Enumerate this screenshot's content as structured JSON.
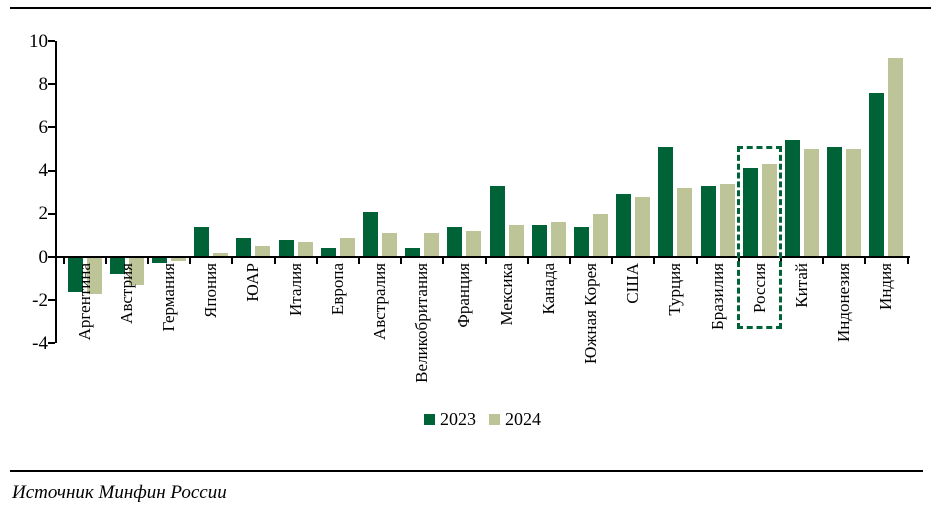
{
  "source": {
    "text": "Источник Минфин России"
  },
  "legend": {
    "items": [
      "2023",
      "2024"
    ]
  },
  "chart_data": {
    "type": "bar",
    "title": "",
    "xlabel": "",
    "ylabel": "",
    "ylim": [
      -4,
      10
    ],
    "yticks": [
      10,
      8,
      6,
      4,
      2,
      0,
      -2,
      -4
    ],
    "grid": false,
    "legend_position": "bottom-center",
    "highlight": {
      "category": "Россия",
      "style": "dashed-outline",
      "color": "#006337"
    },
    "categories": [
      "Аргентина",
      "Австрия",
      "Германия",
      "Япония",
      "ЮАР",
      "Италия",
      "Европа",
      "Австралия",
      "Великобритания",
      "Франция",
      "Мексика",
      "Канада",
      "Южная Корея",
      "США",
      "Турция",
      "Бразилия",
      "Россия",
      "Китай",
      "Индонезия",
      "Индия"
    ],
    "series": [
      {
        "name": "2023",
        "color": "#006337",
        "values": [
          -1.6,
          -0.8,
          -0.3,
          1.4,
          0.9,
          0.8,
          0.4,
          2.1,
          0.4,
          1.4,
          3.3,
          1.5,
          1.4,
          2.9,
          5.1,
          3.3,
          4.1,
          5.4,
          5.1,
          7.6
        ]
      },
      {
        "name": "2024",
        "color": "#BDC598",
        "values": [
          -1.7,
          -1.3,
          -0.2,
          0.2,
          0.5,
          0.7,
          0.9,
          1.1,
          1.1,
          1.2,
          1.5,
          1.6,
          2.0,
          2.8,
          3.2,
          3.4,
          4.3,
          5.0,
          5.0,
          9.2
        ]
      }
    ]
  }
}
